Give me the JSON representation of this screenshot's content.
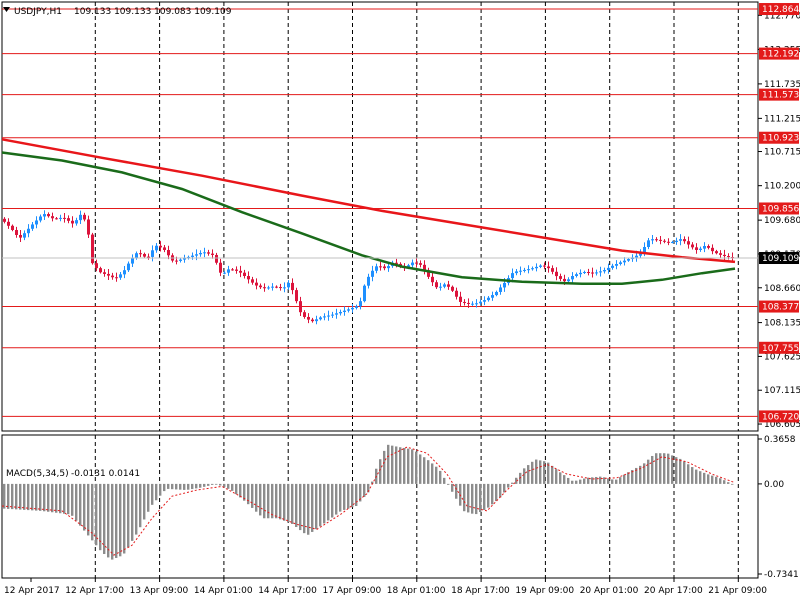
{
  "header": {
    "symbol": "USDJPY,H1",
    "ohlc": "109.133 109.133 109.083 109.109",
    "collapse_icon": "triangle-down-icon"
  },
  "macd_header": {
    "label": "MACD(5,34,5)",
    "values": "-0.0131 0.0141"
  },
  "colors": {
    "bull": "#1e90ff",
    "bear": "#dc143c",
    "ma_fast": "#e8161a",
    "ma_slow": "#1a6b1a",
    "level": "#e31a1a",
    "hist": "#8c8c8c",
    "signal": "#e31a1a",
    "grid": "#000000"
  },
  "chart_data": [
    {
      "type": "candlestick",
      "title": "USDJPY,H1",
      "ylim": [
        106.5,
        112.97
      ],
      "price_ticks": [
        "112.770",
        "112.255",
        "111.735",
        "111.215",
        "110.715",
        "110.200",
        "109.680",
        "109.170",
        "108.660",
        "108.135",
        "107.625",
        "107.115",
        "106.605"
      ],
      "time_labels": [
        "12 Apr 2017",
        "12 Apr 17:00",
        "13 Apr 09:00",
        "14 Apr 01:00",
        "14 Apr 17:00",
        "17 Apr 09:00",
        "18 Apr 01:00",
        "18 Apr 17:00",
        "19 Apr 09:00",
        "20 Apr 01:00",
        "20 Apr 17:00",
        "21 Apr 09:00"
      ],
      "levels": [
        "112.864",
        "112.192",
        "111.573",
        "110.923",
        "109.856",
        "108.377",
        "107.755",
        "106.720"
      ],
      "current_price": "109.109",
      "grid": "vertical dashed",
      "close_path": [
        [
          0,
          109.7
        ],
        [
          10,
          109.55
        ],
        [
          18,
          109.4
        ],
        [
          30,
          109.6
        ],
        [
          42,
          109.78
        ],
        [
          52,
          109.7
        ],
        [
          62,
          109.72
        ],
        [
          72,
          109.62
        ],
        [
          80,
          109.78
        ],
        [
          86,
          109.6
        ],
        [
          90,
          109.05
        ],
        [
          98,
          108.9
        ],
        [
          106,
          108.85
        ],
        [
          114,
          108.8
        ],
        [
          122,
          108.9
        ],
        [
          128,
          109.05
        ],
        [
          136,
          109.2
        ],
        [
          146,
          109.1
        ],
        [
          154,
          109.3
        ],
        [
          162,
          109.25
        ],
        [
          172,
          109.05
        ],
        [
          182,
          109.1
        ],
        [
          192,
          109.15
        ],
        [
          202,
          109.2
        ],
        [
          212,
          109.15
        ],
        [
          220,
          108.85
        ],
        [
          228,
          108.95
        ],
        [
          238,
          108.9
        ],
        [
          246,
          108.8
        ],
        [
          254,
          108.7
        ],
        [
          262,
          108.65
        ],
        [
          272,
          108.68
        ],
        [
          282,
          108.65
        ],
        [
          288,
          108.75
        ],
        [
          294,
          108.5
        ],
        [
          300,
          108.25
        ],
        [
          310,
          108.15
        ],
        [
          320,
          108.22
        ],
        [
          330,
          108.25
        ],
        [
          340,
          108.3
        ],
        [
          350,
          108.35
        ],
        [
          358,
          108.4
        ],
        [
          364,
          108.75
        ],
        [
          370,
          108.9
        ],
        [
          376,
          109.0
        ],
        [
          384,
          108.95
        ],
        [
          392,
          109.05
        ],
        [
          402,
          108.95
        ],
        [
          412,
          109.05
        ],
        [
          420,
          109.0
        ],
        [
          428,
          108.8
        ],
        [
          436,
          108.65
        ],
        [
          444,
          108.72
        ],
        [
          452,
          108.6
        ],
        [
          458,
          108.45
        ],
        [
          466,
          108.42
        ],
        [
          474,
          108.42
        ],
        [
          484,
          108.48
        ],
        [
          494,
          108.58
        ],
        [
          504,
          108.75
        ],
        [
          512,
          108.9
        ],
        [
          520,
          108.92
        ],
        [
          530,
          108.95
        ],
        [
          540,
          109.0
        ],
        [
          548,
          108.95
        ],
        [
          556,
          108.82
        ],
        [
          564,
          108.75
        ],
        [
          572,
          108.85
        ],
        [
          582,
          108.9
        ],
        [
          592,
          108.88
        ],
        [
          602,
          108.92
        ],
        [
          612,
          109.0
        ],
        [
          620,
          109.05
        ],
        [
          628,
          109.1
        ],
        [
          636,
          109.15
        ],
        [
          642,
          109.25
        ],
        [
          648,
          109.4
        ],
        [
          656,
          109.38
        ],
        [
          664,
          109.35
        ],
        [
          672,
          109.35
        ],
        [
          680,
          109.4
        ],
        [
          688,
          109.3
        ],
        [
          696,
          109.22
        ],
        [
          704,
          109.3
        ],
        [
          712,
          109.2
        ],
        [
          720,
          109.15
        ],
        [
          728,
          109.12
        ],
        [
          733,
          109.109
        ]
      ],
      "series": [
        {
          "name": "",
          "type": "moving-average-red",
          "points": [
            [
              0,
              110.9
            ],
            [
              100,
              110.62
            ],
            [
              200,
              110.35
            ],
            [
              300,
              110.05
            ],
            [
              380,
              109.82
            ],
            [
              460,
              109.62
            ],
            [
              540,
              109.42
            ],
            [
              620,
              109.22
            ],
            [
              680,
              109.12
            ],
            [
              733,
              109.05
            ]
          ]
        },
        {
          "name": "",
          "type": "moving-average-green",
          "points": [
            [
              0,
              110.7
            ],
            [
              60,
              110.58
            ],
            [
              120,
              110.4
            ],
            [
              180,
              110.15
            ],
            [
              240,
              109.8
            ],
            [
              300,
              109.48
            ],
            [
              360,
              109.15
            ],
            [
              400,
              108.98
            ],
            [
              460,
              108.82
            ],
            [
              520,
              108.75
            ],
            [
              580,
              108.72
            ],
            [
              620,
              108.72
            ],
            [
              660,
              108.78
            ],
            [
              700,
              108.88
            ],
            [
              733,
              108.95
            ]
          ]
        }
      ]
    },
    {
      "type": "bar",
      "title": "MACD(5,34,5)",
      "ylim": [
        -0.7341,
        0.3658
      ],
      "tick_labels": [
        "0.3658",
        "0.00",
        "-0.7341"
      ],
      "histogram_path": [
        [
          0,
          -0.2
        ],
        [
          40,
          -0.22
        ],
        [
          70,
          -0.25
        ],
        [
          85,
          -0.4
        ],
        [
          100,
          -0.55
        ],
        [
          110,
          -0.62
        ],
        [
          122,
          -0.58
        ],
        [
          136,
          -0.4
        ],
        [
          150,
          -0.18
        ],
        [
          165,
          -0.04
        ],
        [
          185,
          -0.05
        ],
        [
          200,
          -0.03
        ],
        [
          215,
          0.0
        ],
        [
          230,
          -0.05
        ],
        [
          245,
          -0.15
        ],
        [
          262,
          -0.28
        ],
        [
          276,
          -0.28
        ],
        [
          290,
          -0.32
        ],
        [
          306,
          -0.42
        ],
        [
          320,
          -0.34
        ],
        [
          340,
          -0.22
        ],
        [
          355,
          -0.18
        ],
        [
          368,
          -0.06
        ],
        [
          376,
          0.15
        ],
        [
          386,
          0.32
        ],
        [
          398,
          0.3
        ],
        [
          412,
          0.28
        ],
        [
          426,
          0.2
        ],
        [
          438,
          0.12
        ],
        [
          450,
          -0.05
        ],
        [
          462,
          -0.22
        ],
        [
          474,
          -0.25
        ],
        [
          486,
          -0.2
        ],
        [
          498,
          -0.12
        ],
        [
          512,
          0.02
        ],
        [
          522,
          0.12
        ],
        [
          534,
          0.2
        ],
        [
          546,
          0.18
        ],
        [
          558,
          0.1
        ],
        [
          572,
          0.02
        ],
        [
          586,
          0.05
        ],
        [
          600,
          0.06
        ],
        [
          614,
          0.03
        ],
        [
          628,
          0.1
        ],
        [
          642,
          0.16
        ],
        [
          654,
          0.25
        ],
        [
          666,
          0.25
        ],
        [
          680,
          0.2
        ],
        [
          694,
          0.12
        ],
        [
          706,
          0.08
        ],
        [
          718,
          0.05
        ],
        [
          733,
          -0.01
        ]
      ],
      "signal_path": [
        [
          0,
          -0.18
        ],
        [
          60,
          -0.22
        ],
        [
          90,
          -0.4
        ],
        [
          112,
          -0.58
        ],
        [
          130,
          -0.5
        ],
        [
          150,
          -0.28
        ],
        [
          170,
          -0.1
        ],
        [
          195,
          -0.05
        ],
        [
          220,
          -0.02
        ],
        [
          245,
          -0.13
        ],
        [
          270,
          -0.25
        ],
        [
          295,
          -0.33
        ],
        [
          315,
          -0.37
        ],
        [
          340,
          -0.24
        ],
        [
          365,
          -0.08
        ],
        [
          385,
          0.22
        ],
        [
          405,
          0.3
        ],
        [
          425,
          0.25
        ],
        [
          445,
          0.08
        ],
        [
          465,
          -0.18
        ],
        [
          485,
          -0.22
        ],
        [
          505,
          -0.05
        ],
        [
          525,
          0.1
        ],
        [
          545,
          0.16
        ],
        [
          565,
          0.08
        ],
        [
          590,
          0.04
        ],
        [
          615,
          0.05
        ],
        [
          640,
          0.13
        ],
        [
          660,
          0.22
        ],
        [
          685,
          0.18
        ],
        [
          710,
          0.08
        ],
        [
          733,
          0.01
        ]
      ]
    }
  ]
}
